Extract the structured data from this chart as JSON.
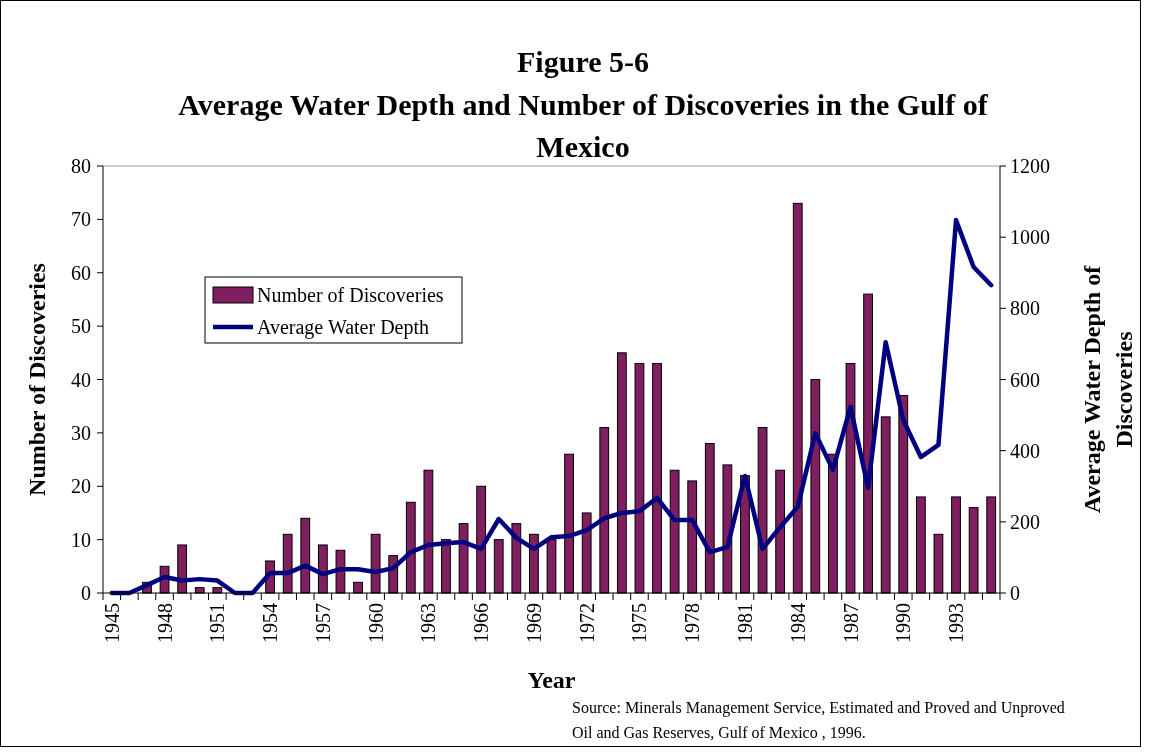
{
  "chart_data": {
    "type": "bar",
    "title": "Figure 5-6",
    "subtitle": "Average Water Depth and Number of Discoveries in the Gulf of Mexico",
    "xlabel": "Year",
    "ylabel": "Number of Discoveries",
    "y2label": "Average Water Depth of Discoveries",
    "categories": [
      "1945",
      null,
      null,
      "1948",
      null,
      null,
      "1951",
      null,
      null,
      "1954",
      null,
      null,
      "1957",
      null,
      null,
      "1960",
      null,
      null,
      "1963",
      null,
      null,
      "1966",
      null,
      null,
      "1969",
      null,
      null,
      "1972",
      null,
      null,
      "1975",
      null,
      null,
      "1978",
      null,
      null,
      "1981",
      null,
      null,
      "1984",
      null,
      null,
      "1987",
      null,
      null,
      "1990",
      null,
      null,
      "1993",
      null,
      null
    ],
    "series": [
      {
        "name": "Number of Discoveries",
        "color": "#7f1f5f",
        "values": [
          0,
          0,
          2,
          5,
          9,
          1,
          1,
          0,
          0,
          6,
          11,
          14,
          9,
          8,
          2,
          11,
          7,
          17,
          23,
          10,
          13,
          20,
          10,
          13,
          11,
          10,
          26,
          15,
          31,
          45,
          43,
          43,
          23,
          21,
          28,
          24,
          22,
          31,
          23,
          73,
          40,
          26,
          43,
          56,
          33,
          37,
          18,
          11,
          18,
          16,
          18
        ]
      },
      {
        "name": "Average Water Depth",
        "type": "line",
        "axis": "y2",
        "color": "#000080",
        "values": [
          0,
          0,
          22,
          45,
          35,
          39,
          35,
          0,
          0,
          56,
          56,
          77,
          53,
          67,
          67,
          59,
          70,
          115,
          135,
          140,
          143,
          124,
          208,
          155,
          124,
          157,
          160,
          177,
          210,
          225,
          230,
          267,
          205,
          205,
          115,
          129,
          329,
          124,
          185,
          242,
          449,
          346,
          523,
          295,
          705,
          486,
          382,
          416,
          1048,
          916,
          865
        ]
      }
    ],
    "ylim": [
      0,
      80
    ],
    "yticks": [
      0,
      10,
      20,
      30,
      40,
      50,
      60,
      70,
      80
    ],
    "y2lim": [
      0,
      1200
    ],
    "y2ticks": [
      0,
      200,
      400,
      600,
      800,
      1000,
      1200
    ],
    "legend": "top left",
    "annotations": [
      "Source: Minerals Management Service, Estimated and Proved and Unproved Oil and Gas Reserves, Gulf of Mexico , 1996."
    ]
  }
}
